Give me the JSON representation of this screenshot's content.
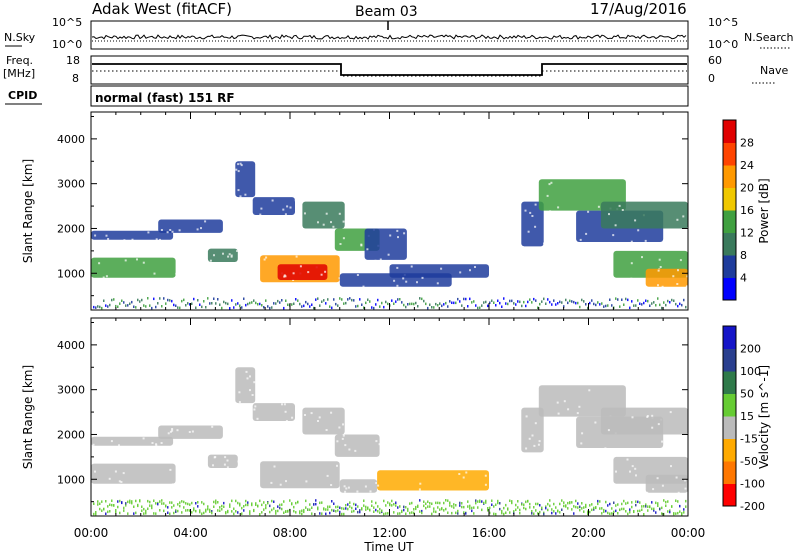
{
  "header": {
    "title": "Adak West (fitACF)",
    "beam": "Beam 03",
    "date": "17/Aug/2016"
  },
  "top_panel": {
    "left_label": "N.Sky",
    "right_label": "N.Search",
    "left_ticks": [
      "10^5",
      "10^0"
    ],
    "right_ticks": [
      "10^5",
      "10^0"
    ]
  },
  "freq_panel": {
    "left_label_1": "Freq.",
    "left_label_2": "[MHz]",
    "right_label": "Nave",
    "left_ticks": [
      "18",
      "8"
    ],
    "right_ticks": [
      "60",
      "0"
    ]
  },
  "cpid": {
    "label": "CPID",
    "text": "normal (fast) 151 RF"
  },
  "x_axis": {
    "title": "Time UT",
    "ticks": [
      "00:00",
      "04:00",
      "08:00",
      "12:00",
      "16:00",
      "20:00",
      "00:00"
    ]
  },
  "colors": {
    "power": [
      "#0000ff",
      "#1e3c9c",
      "#3a7a5c",
      "#40a040",
      "#f0c800",
      "#ff9900",
      "#ff4400",
      "#e00000"
    ],
    "velocity": [
      "#ff0000",
      "#ff7700",
      "#ffaa00",
      "#bbbbbb",
      "#66cc33",
      "#2f7a4a",
      "#2a3f8f",
      "#1515c8"
    ],
    "velocity_ground": "#66cc33"
  },
  "chart_data": [
    {
      "type": "heatmap",
      "quantity": "Power",
      "ylabel": "Slant Range [km]",
      "yticks": [
        1000,
        2000,
        3000,
        4000
      ],
      "ylim": [
        180,
        4600
      ],
      "xlim": [
        0,
        24
      ],
      "colorbar_label": "Power [dB]",
      "colorbar_ticks": [
        "4",
        "8",
        "12",
        "16",
        "20",
        "24",
        "28"
      ],
      "patches": [
        {
          "t": [
            0.0,
            3.4
          ],
          "r": [
            900,
            1350
          ],
          "v": 12
        },
        {
          "t": [
            0.0,
            3.3
          ],
          "r": [
            1750,
            1950
          ],
          "v": 4
        },
        {
          "t": [
            2.7,
            5.3
          ],
          "r": [
            1900,
            2200
          ],
          "v": 6
        },
        {
          "t": [
            4.7,
            5.9
          ],
          "r": [
            1250,
            1550
          ],
          "v": 10
        },
        {
          "t": [
            5.8,
            6.6
          ],
          "r": [
            2700,
            3500
          ],
          "v": 4
        },
        {
          "t": [
            6.5,
            8.2
          ],
          "r": [
            2300,
            2700
          ],
          "v": 6
        },
        {
          "t": [
            6.8,
            10.0
          ],
          "r": [
            800,
            1400
          ],
          "v": 22
        },
        {
          "t": [
            7.5,
            9.5
          ],
          "r": [
            850,
            1200
          ],
          "v": 28
        },
        {
          "t": [
            8.5,
            10.2
          ],
          "r": [
            2000,
            2600
          ],
          "v": 10
        },
        {
          "t": [
            9.8,
            11.6
          ],
          "r": [
            1500,
            2000
          ],
          "v": 12
        },
        {
          "t": [
            10.0,
            14.5
          ],
          "r": [
            700,
            1000
          ],
          "v": 5
        },
        {
          "t": [
            11.0,
            12.7
          ],
          "r": [
            1300,
            2000
          ],
          "v": 4
        },
        {
          "t": [
            12.0,
            16.0
          ],
          "r": [
            900,
            1200
          ],
          "v": 4
        },
        {
          "t": [
            17.3,
            18.2
          ],
          "r": [
            1600,
            2600
          ],
          "v": 4
        },
        {
          "t": [
            18.0,
            21.5
          ],
          "r": [
            2400,
            3100
          ],
          "v": 12
        },
        {
          "t": [
            19.5,
            23.0
          ],
          "r": [
            1700,
            2400
          ],
          "v": 6
        },
        {
          "t": [
            20.5,
            24.0
          ],
          "r": [
            2000,
            2600
          ],
          "v": 10
        },
        {
          "t": [
            21.0,
            24.0
          ],
          "r": [
            900,
            1500
          ],
          "v": 14
        },
        {
          "t": [
            22.3,
            24.0
          ],
          "r": [
            700,
            1100
          ],
          "v": 20
        }
      ]
    },
    {
      "type": "heatmap",
      "quantity": "Velocity",
      "ylabel": "Slant Range [km]",
      "yticks": [
        1000,
        2000,
        3000,
        4000
      ],
      "ylim": [
        180,
        4600
      ],
      "xlim": [
        0,
        24
      ],
      "colorbar_label": "Velocity [m s^-1]",
      "colorbar_ticks": [
        "200",
        "100",
        "50",
        "15",
        "-15",
        "-50",
        "-100",
        "-200"
      ],
      "patches": [
        {
          "t": [
            0.0,
            3.4
          ],
          "r": [
            900,
            1350
          ],
          "v": 0
        },
        {
          "t": [
            0.0,
            3.3
          ],
          "r": [
            1750,
            1950
          ],
          "v": 0
        },
        {
          "t": [
            2.7,
            5.3
          ],
          "r": [
            1900,
            2200
          ],
          "v": 0
        },
        {
          "t": [
            4.7,
            5.9
          ],
          "r": [
            1250,
            1550
          ],
          "v": 0
        },
        {
          "t": [
            5.8,
            6.6
          ],
          "r": [
            2700,
            3500
          ],
          "v": 0
        },
        {
          "t": [
            6.5,
            8.2
          ],
          "r": [
            2300,
            2700
          ],
          "v": 0
        },
        {
          "t": [
            6.8,
            10.0
          ],
          "r": [
            800,
            1400
          ],
          "v": 0
        },
        {
          "t": [
            8.5,
            10.2
          ],
          "r": [
            2000,
            2600
          ],
          "v": 0
        },
        {
          "t": [
            9.8,
            11.6
          ],
          "r": [
            1500,
            2000
          ],
          "v": 0
        },
        {
          "t": [
            10.0,
            11.5
          ],
          "r": [
            700,
            1000
          ],
          "v": 0
        },
        {
          "t": [
            11.5,
            16.0
          ],
          "r": [
            750,
            1200
          ],
          "v": -40
        },
        {
          "t": [
            17.3,
            18.2
          ],
          "r": [
            1600,
            2600
          ],
          "v": 0
        },
        {
          "t": [
            18.0,
            21.5
          ],
          "r": [
            2400,
            3100
          ],
          "v": 0
        },
        {
          "t": [
            19.5,
            23.0
          ],
          "r": [
            1700,
            2400
          ],
          "v": 0
        },
        {
          "t": [
            20.5,
            24.0
          ],
          "r": [
            2000,
            2600
          ],
          "v": 0
        },
        {
          "t": [
            21.0,
            24.0
          ],
          "r": [
            900,
            1500
          ],
          "v": 0
        },
        {
          "t": [
            22.3,
            24.0
          ],
          "r": [
            700,
            1100
          ],
          "v": 0
        }
      ]
    }
  ]
}
